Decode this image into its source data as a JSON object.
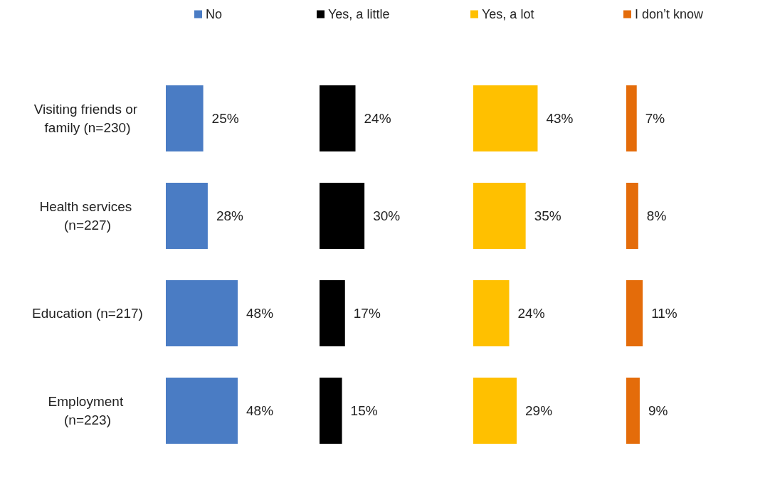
{
  "chart_data": [
    {
      "type": "bar",
      "orientation": "horizontal",
      "categories": [
        "Visiting friends or family (n=230)",
        "Health services (n=227)",
        "Education (n=217)",
        "Employment (n=223)"
      ],
      "tick_labels": "y",
      "legend": "top",
      "grid": false,
      "series": [
        {
          "name": "No",
          "color": "#4a7cc4",
          "values": [
            25,
            28,
            48,
            48
          ],
          "value_labels": [
            "25%",
            "28%",
            "48%",
            "48%"
          ]
        }
      ]
    },
    {
      "type": "bar",
      "orientation": "horizontal",
      "categories": [
        "Visiting friends or family (n=230)",
        "Health services (n=227)",
        "Education (n=217)",
        "Employment (n=223)"
      ],
      "tick_labels": false,
      "legend": "top",
      "grid": false,
      "series": [
        {
          "name": "Yes, a little",
          "color": "#000000",
          "values": [
            24,
            30,
            17,
            15
          ],
          "value_labels": [
            "24%",
            "30%",
            "17%",
            "15%"
          ]
        }
      ]
    },
    {
      "type": "bar",
      "orientation": "horizontal",
      "categories": [
        "Visiting friends or family (n=230)",
        "Health services (n=227)",
        "Education (n=217)",
        "Employment (n=223)"
      ],
      "tick_labels": false,
      "legend": "top",
      "grid": false,
      "series": [
        {
          "name": "Yes, a lot",
          "color": "#ffc000",
          "values": [
            43,
            35,
            24,
            29
          ],
          "value_labels": [
            "43%",
            "35%",
            "24%",
            "29%"
          ]
        }
      ]
    },
    {
      "type": "bar",
      "orientation": "horizontal",
      "categories": [
        "Visiting friends or family (n=230)",
        "Health services (n=227)",
        "Education (n=217)",
        "Employment (n=223)"
      ],
      "tick_labels": false,
      "legend": "top",
      "grid": false,
      "series": [
        {
          "name": "I don’t know",
          "color": "#e46c0a",
          "values": [
            7,
            8,
            11,
            9
          ],
          "value_labels": [
            "7%",
            "8%",
            "11%",
            "9%"
          ]
        }
      ]
    }
  ]
}
